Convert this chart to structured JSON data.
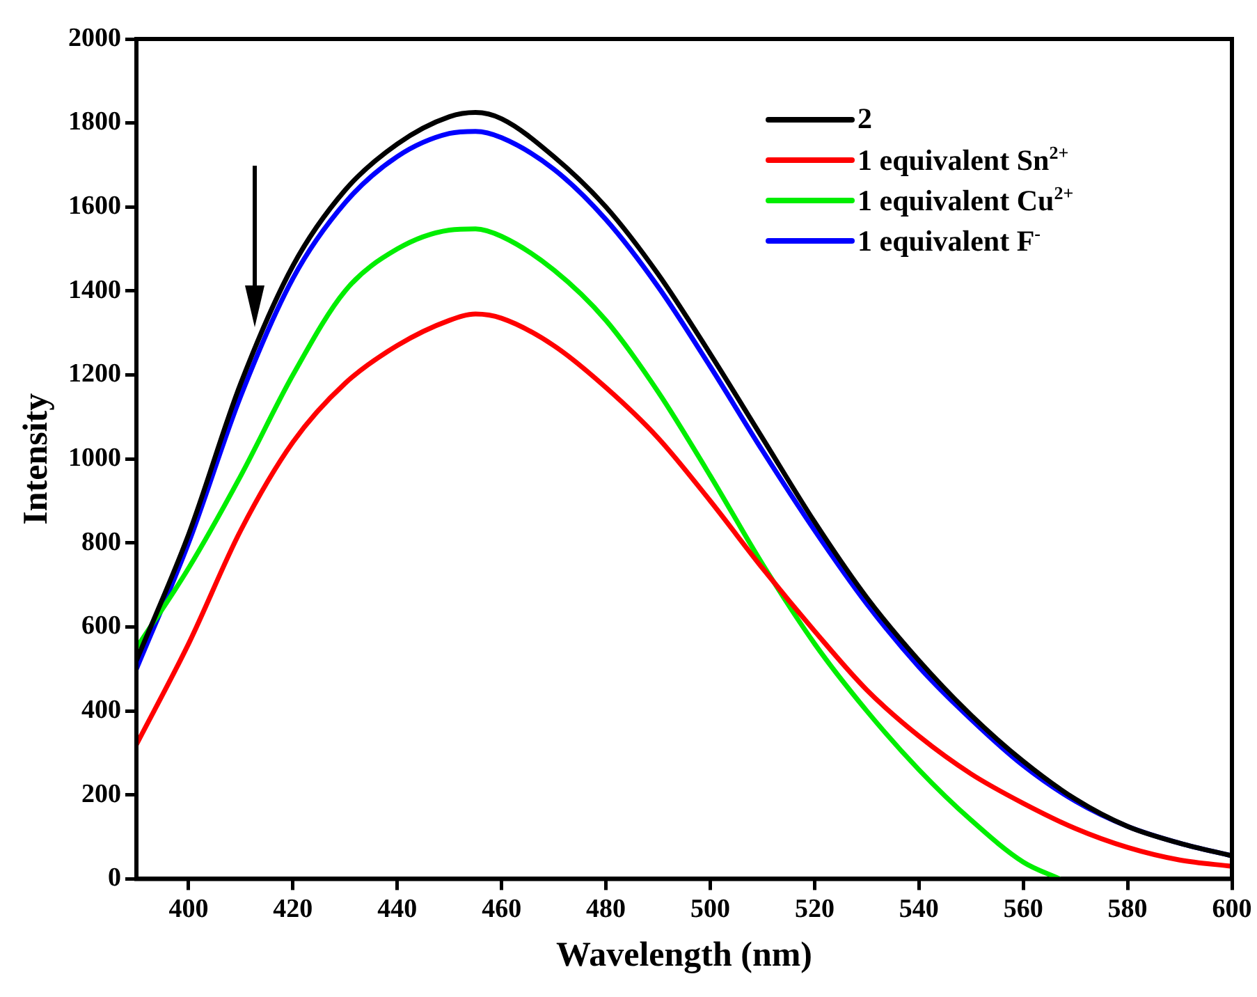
{
  "chart_data": {
    "type": "line",
    "xlabel": "Wavelength (nm)",
    "ylabel": "Intensity",
    "xlim": [
      390,
      600
    ],
    "xticks": [
      400,
      420,
      440,
      460,
      480,
      500,
      520,
      540,
      560,
      580,
      600
    ],
    "ylim": [
      0,
      2000
    ],
    "yticks": [
      0,
      200,
      400,
      600,
      800,
      1000,
      1200,
      1400,
      1600,
      1800,
      2000
    ],
    "grid": false,
    "legend": "top right",
    "marker": "none",
    "line_style": "solid",
    "x": [
      390,
      400,
      410,
      420,
      430,
      440,
      450,
      455,
      460,
      470,
      480,
      490,
      500,
      510,
      520,
      530,
      540,
      550,
      560,
      570,
      580,
      590,
      600
    ],
    "series": [
      {
        "name": "2",
        "color": "#000000",
        "values": [
          520,
          820,
          1180,
          1460,
          1640,
          1750,
          1815,
          1825,
          1810,
          1720,
          1600,
          1440,
          1250,
          1050,
          850,
          670,
          520,
          390,
          280,
          190,
          125,
          85,
          55
        ]
      },
      {
        "name": "1 equivalent Sn$^{2+}$",
        "color": "#ff0000",
        "values": [
          320,
          560,
          830,
          1040,
          1180,
          1270,
          1330,
          1345,
          1335,
          1270,
          1170,
          1050,
          900,
          740,
          590,
          450,
          340,
          250,
          180,
          120,
          75,
          45,
          30
        ]
      },
      {
        "name": "1 equivalent Cu$^{2+}$",
        "color": "#00ee00",
        "x": [
          390,
          400,
          410,
          420,
          430,
          440,
          450,
          455,
          460,
          470,
          480,
          490,
          500,
          510,
          520,
          530,
          540,
          550,
          560,
          567
        ],
        "values": [
          550,
          740,
          960,
          1200,
          1400,
          1500,
          1545,
          1548,
          1530,
          1450,
          1330,
          1160,
          960,
          750,
          560,
          400,
          260,
          140,
          40,
          0
        ]
      },
      {
        "name": "1 equivalent F$^{-}$",
        "color": "#0000ff",
        "values": [
          500,
          800,
          1150,
          1430,
          1610,
          1720,
          1775,
          1780,
          1765,
          1690,
          1570,
          1410,
          1220,
          1020,
          830,
          655,
          505,
          380,
          270,
          185,
          125,
          85,
          55
        ]
      }
    ]
  }
}
